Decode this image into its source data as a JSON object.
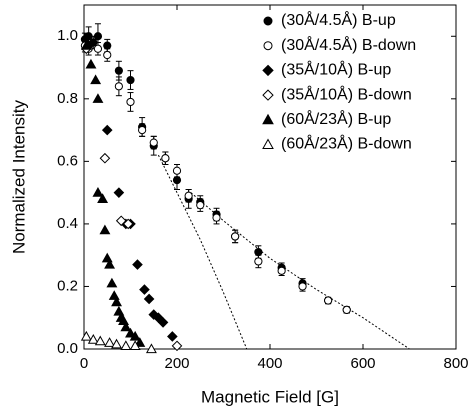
{
  "chart_data": {
    "type": "scatter",
    "xlabel": "Magnetic Field [G]",
    "ylabel": "Normalized Intensity",
    "xlim": [
      0,
      800
    ],
    "ylim": [
      0,
      1.1
    ],
    "xticks": [
      0,
      200,
      400,
      600,
      800
    ],
    "yticks": [
      {
        "value": 0,
        "label": "0.0"
      },
      0.2,
      0.4,
      0.6,
      0.8,
      {
        "value": 1,
        "label": "1.0"
      }
    ],
    "legend": "upper right",
    "series": [
      {
        "name": "(30Å/4.5Å) B-up",
        "color": "#000000",
        "marker": "circle",
        "filled": true,
        "x": [
          2,
          10,
          20,
          30,
          50,
          75,
          100,
          125,
          150,
          175,
          200,
          225,
          250,
          285,
          325,
          375,
          425,
          470,
          525,
          565
        ],
        "values": [
          0.99,
          1.0,
          0.98,
          1.0,
          0.97,
          0.89,
          0.86,
          0.71,
          0.65,
          0.61,
          0.54,
          0.48,
          0.47,
          0.43,
          0.36,
          0.31,
          0.26,
          0.21,
          0.155,
          0.125
        ],
        "errors": [
          0.02,
          0.03,
          0.02,
          0.04,
          0.02,
          0.03,
          0.03,
          0.03,
          0.03,
          0.02,
          0.03,
          0.03,
          0.02,
          0.02,
          0.02,
          0.02,
          0.015,
          0.015,
          0.01,
          0.01
        ]
      },
      {
        "name": "(30Å/4.5Å) B-down",
        "color": "#000000",
        "marker": "circle",
        "filled": false,
        "x": [
          2,
          10,
          30,
          50,
          75,
          100,
          125,
          150,
          175,
          200,
          225,
          250,
          285,
          325,
          375,
          425,
          470,
          525,
          565
        ],
        "values": [
          0.97,
          0.96,
          0.96,
          0.94,
          0.84,
          0.79,
          0.7,
          0.66,
          0.61,
          0.57,
          0.49,
          0.46,
          0.42,
          0.36,
          0.28,
          0.25,
          0.2,
          0.155,
          0.125
        ],
        "errors": [
          0.02,
          0.02,
          0.02,
          0.02,
          0.03,
          0.03,
          0.02,
          0.02,
          0.02,
          0.02,
          0.02,
          0.02,
          0.02,
          0.02,
          0.02,
          0.015,
          0.015,
          0.01,
          0.01
        ]
      },
      {
        "name": "(35Å/10Å) B-up",
        "color": "#000000",
        "marker": "diamond",
        "filled": true,
        "x": [
          10,
          50,
          75,
          90,
          100,
          115,
          130,
          140,
          150,
          160,
          170,
          190
        ],
        "values": [
          0.97,
          0.7,
          0.5,
          0.4,
          0.4,
          0.27,
          0.19,
          0.16,
          0.11,
          0.1,
          0.085,
          0.04
        ]
      },
      {
        "name": "(35Å/10Å) B-down",
        "color": "#000000",
        "marker": "diamond",
        "filled": false,
        "x": [
          5,
          45,
          80,
          95,
          200
        ],
        "values": [
          0.96,
          0.61,
          0.41,
          0.4,
          0.01
        ]
      },
      {
        "name": "(60Å/23Å) B-up",
        "color": "#000000",
        "marker": "triangle",
        "filled": true,
        "x": [
          5,
          15,
          25,
          30,
          30,
          40,
          45,
          50,
          55,
          60,
          65,
          70,
          75,
          80,
          85,
          90,
          100,
          110,
          120
        ],
        "values": [
          0.97,
          0.91,
          0.86,
          0.8,
          0.5,
          0.48,
          0.38,
          0.29,
          0.27,
          0.21,
          0.17,
          0.15,
          0.12,
          0.1,
          0.09,
          0.07,
          0.05,
          0.04,
          0.02
        ]
      },
      {
        "name": "(60Å/23Å) B-down",
        "color": "#000000",
        "marker": "triangle",
        "filled": false,
        "x": [
          5,
          20,
          35,
          55,
          70,
          90,
          110,
          145
        ],
        "values": [
          0.04,
          0.03,
          0.025,
          0.02,
          0.015,
          0.01,
          0.01,
          0.0
        ]
      }
    ],
    "fits": [
      {
        "x": [
          160,
          200,
          250,
          300,
          350
        ],
        "values": [
          0.62,
          0.5,
          0.35,
          0.18,
          0.0
        ]
      },
      {
        "x": [
          230,
          300,
          400,
          500,
          600,
          700
        ],
        "values": [
          0.5,
          0.41,
          0.29,
          0.19,
          0.1,
          0.0
        ]
      }
    ]
  }
}
